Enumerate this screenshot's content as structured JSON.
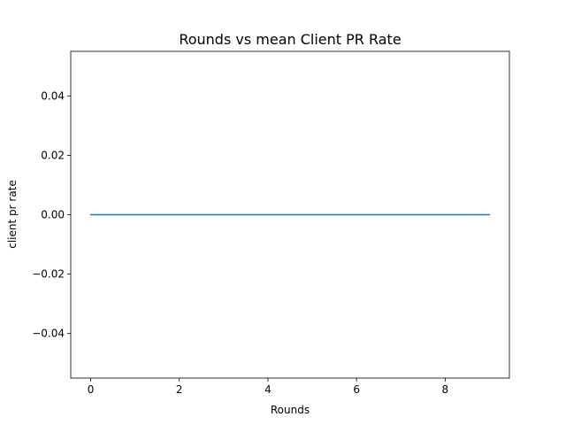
{
  "chart_data": {
    "type": "line",
    "title": "Rounds vs mean Client PR Rate",
    "xlabel": "Rounds",
    "ylabel": "client pr rate",
    "xlim": [
      -0.45,
      9.45
    ],
    "ylim": [
      -0.055,
      0.055
    ],
    "xticks": [
      0,
      2,
      4,
      6,
      8
    ],
    "xtick_labels": [
      "0",
      "2",
      "4",
      "6",
      "8"
    ],
    "yticks": [
      -0.04,
      -0.02,
      0.0,
      0.02,
      0.04
    ],
    "ytick_labels": [
      "−0.04",
      "−0.02",
      "0.00",
      "0.02",
      "0.04"
    ],
    "grid": false,
    "series": [
      {
        "color": "#1f77b4",
        "x": [
          0,
          1,
          2,
          3,
          4,
          5,
          6,
          7,
          8,
          9
        ],
        "y": [
          0,
          0,
          0,
          0,
          0,
          0,
          0,
          0,
          0,
          0
        ]
      }
    ]
  }
}
